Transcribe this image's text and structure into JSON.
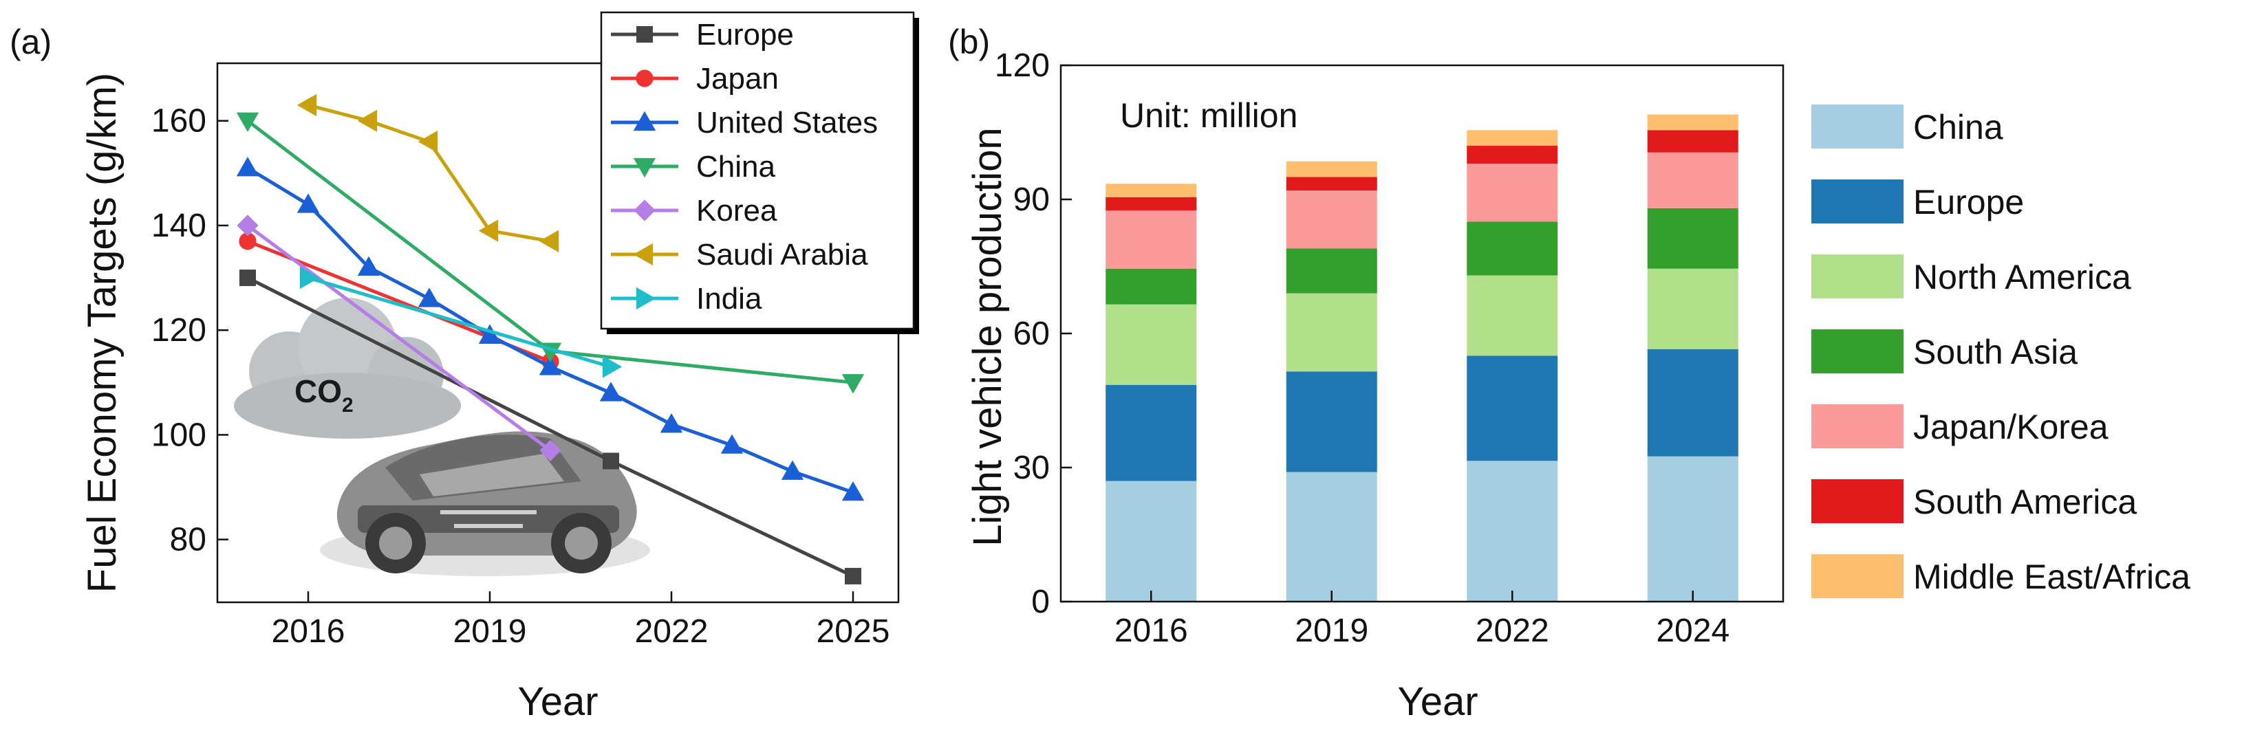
{
  "panels": {
    "a": "(a)",
    "b": "(b)"
  },
  "chart_data": [
    {
      "type": "line",
      "ylabel": "Fuel Economy Targets (g/km)",
      "xlabel": "Year",
      "xlim": [
        2014.5,
        2025.75
      ],
      "ylim": [
        68,
        171
      ],
      "xticks": [
        2016,
        2019,
        2022,
        2025
      ],
      "yticks": [
        80,
        100,
        120,
        140,
        160
      ],
      "legend_position": "top-right",
      "overlay": {
        "co2_label": "CO",
        "co2_subscript": "2",
        "cloud_icon": "cloud-icon",
        "car_icon": "car-chassis-icon"
      },
      "series": [
        {
          "name": "Europe",
          "color": "#444444",
          "marker": "square",
          "points": [
            [
              2015,
              130
            ],
            [
              2021,
              95
            ],
            [
              2025,
              73
            ]
          ]
        },
        {
          "name": "Japan",
          "color": "#ee3333",
          "marker": "circle",
          "points": [
            [
              2015,
              137
            ],
            [
              2020,
              114
            ]
          ]
        },
        {
          "name": "United States",
          "color": "#1a5fd6",
          "marker": "triangle-up",
          "points": [
            [
              2015,
              151
            ],
            [
              2016,
              144
            ],
            [
              2017,
              132
            ],
            [
              2018,
              126
            ],
            [
              2019,
              119
            ],
            [
              2020,
              113
            ],
            [
              2021,
              108
            ],
            [
              2022,
              102
            ],
            [
              2023,
              98
            ],
            [
              2024,
              93
            ],
            [
              2025,
              89
            ]
          ]
        },
        {
          "name": "China",
          "color": "#2eac66",
          "marker": "triangle-down",
          "points": [
            [
              2015,
              160
            ],
            [
              2020,
              116
            ],
            [
              2025,
              110
            ]
          ]
        },
        {
          "name": "Korea",
          "color": "#b47ee6",
          "marker": "diamond",
          "points": [
            [
              2015,
              140
            ],
            [
              2020,
              97
            ]
          ]
        },
        {
          "name": "Saudi Arabia",
          "color": "#c9a10c",
          "marker": "triangle-left",
          "points": [
            [
              2016,
              163
            ],
            [
              2017,
              160
            ],
            [
              2018,
              156
            ],
            [
              2019,
              139
            ],
            [
              2020,
              137
            ]
          ]
        },
        {
          "name": "India",
          "color": "#1fbcc9",
          "marker": "triangle-right",
          "points": [
            [
              2016,
              130
            ],
            [
              2021,
              113
            ]
          ]
        }
      ]
    },
    {
      "type": "bar",
      "stacked": true,
      "ylabel": "Light vehicle production",
      "xlabel": "Year",
      "annotation": "Unit: million",
      "ylim": [
        0,
        120
      ],
      "yticks": [
        0,
        30,
        60,
        90,
        120
      ],
      "categories": [
        "2016",
        "2019",
        "2022",
        "2024"
      ],
      "legend_position": "right",
      "series": [
        {
          "name": "China",
          "color": "#a6cee3",
          "values": [
            27,
            29,
            31.5,
            32.5
          ]
        },
        {
          "name": "Europe",
          "color": "#1f78b4",
          "values": [
            21.5,
            22.5,
            23.5,
            24
          ]
        },
        {
          "name": "North America",
          "color": "#b2df8a",
          "values": [
            18,
            17.5,
            18,
            18
          ]
        },
        {
          "name": "South Asia",
          "color": "#33a02c",
          "values": [
            8,
            10,
            12,
            13.5
          ]
        },
        {
          "name": "Japan/Korea",
          "color": "#fb9a99",
          "values": [
            13,
            13,
            13,
            12.5
          ]
        },
        {
          "name": "South America",
          "color": "#e31a1c",
          "values": [
            3,
            3,
            4,
            5
          ]
        },
        {
          "name": "Middle East/Africa",
          "color": "#fdbf6f",
          "values": [
            3,
            3.5,
            3.5,
            3.5
          ]
        }
      ]
    }
  ]
}
